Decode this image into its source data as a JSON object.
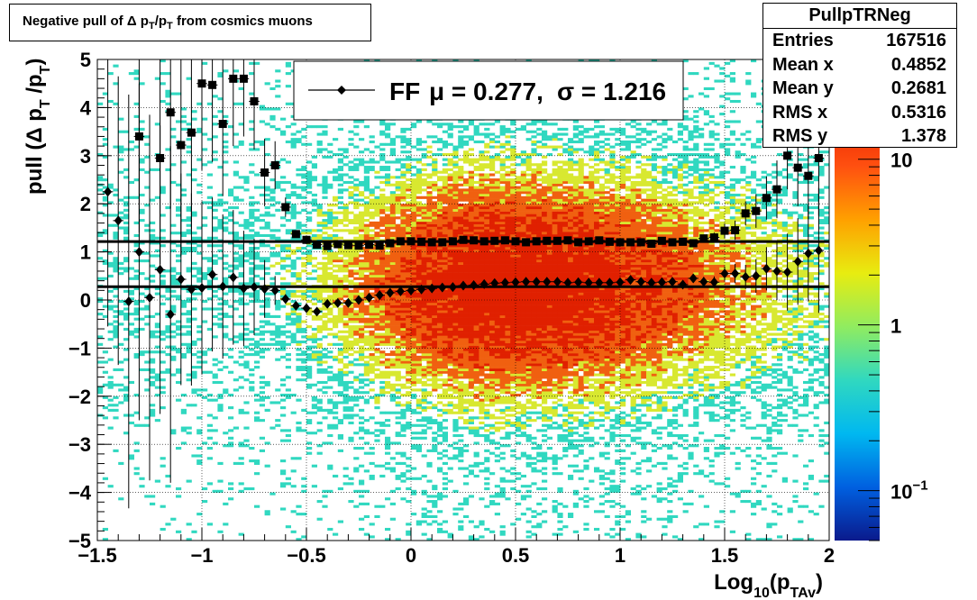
{
  "chart_data": {
    "type": "scatter",
    "title": "Negative pull of Δ p_T/p_T from cosmics muons",
    "title_parts": [
      "Negative pull of Δ p",
      "T",
      "/p",
      "T",
      " from cosmics muons"
    ],
    "xlabel": "Log10(pTAv)",
    "xlabel_parts": [
      "Log",
      "10",
      "(p",
      "TAv",
      ")"
    ],
    "ylabel": "pull (Δ p_T /p_T)",
    "ylabel_parts": [
      "pull (Δ p",
      "T",
      " /p",
      "T",
      ")"
    ],
    "xlim": [
      -1.5,
      2.0
    ],
    "ylim": [
      -5,
      5
    ],
    "grid": true,
    "xticks": [
      -1.5,
      -1,
      -0.5,
      0,
      0.5,
      1,
      1.5,
      2
    ],
    "xtick_labels": [
      "−1.5",
      "−1",
      "−0.5",
      "0",
      "0.5",
      "1",
      "1.5",
      "2"
    ],
    "yticks": [
      -5,
      -4,
      -3,
      -2,
      -1,
      0,
      1,
      2,
      3,
      4,
      5
    ],
    "ytick_labels": [
      "−5",
      "−4",
      "−3",
      "−2",
      "−1",
      "0",
      "1",
      "2",
      "3",
      "4",
      "5"
    ],
    "colorbar": {
      "scale": "log",
      "range": [
        0.05,
        40
      ],
      "labels": [
        {
          "value": 0.1,
          "base": "10",
          "exp": "−1"
        },
        {
          "value": 1,
          "base": "1",
          "exp": ""
        },
        {
          "value": 10,
          "base": "10",
          "exp": ""
        }
      ],
      "colors": [
        "#0a1a8c",
        "#0060e0",
        "#00b8f0",
        "#30d8c0",
        "#90ec60",
        "#e8ec10",
        "#ffa000",
        "#ff5010",
        "#e82000",
        "#c01800"
      ]
    },
    "density_colors": {
      "low": "#30d8c0",
      "mid": "#d8e830",
      "high": "#f06010",
      "peak": "#e02000"
    },
    "fit": {
      "label": "FF",
      "mu_text": "μ =  0.277,",
      "sigma_text": "σ =   1.216",
      "mean": 0.277,
      "sigma": 1.216
    },
    "stats": {
      "name": "PullpTRNeg",
      "rows": [
        {
          "label": "Entries",
          "value": "167516"
        },
        {
          "label": "Mean x",
          "value": "0.4852"
        },
        {
          "label": "Mean y",
          "value": "0.2681"
        },
        {
          "label": "RMS x",
          "value": "0.5316"
        },
        {
          "label": "RMS y",
          "value": "1.378"
        }
      ]
    },
    "series": [
      {
        "marker": "diamond",
        "x": [
          -1.45,
          -1.4,
          -1.35,
          -1.3,
          -1.25,
          -1.2,
          -1.15,
          -1.1,
          -1.05,
          -1.0,
          -0.95,
          -0.9,
          -0.85,
          -0.8,
          -0.75,
          -0.7,
          -0.65,
          -0.6,
          -0.55,
          -0.5,
          -0.45,
          -0.4,
          -0.35,
          -0.3,
          -0.25,
          -0.2,
          -0.15,
          -0.1,
          -0.05,
          0.0,
          0.05,
          0.1,
          0.15,
          0.2,
          0.25,
          0.3,
          0.35,
          0.4,
          0.45,
          0.5,
          0.55,
          0.6,
          0.65,
          0.7,
          0.75,
          0.8,
          0.85,
          0.9,
          0.95,
          1.0,
          1.05,
          1.1,
          1.15,
          1.2,
          1.25,
          1.3,
          1.35,
          1.4,
          1.45,
          1.5,
          1.55,
          1.6,
          1.65,
          1.7,
          1.75,
          1.8,
          1.85,
          1.9,
          1.95
        ],
        "y": [
          2.25,
          1.65,
          -0.03,
          1.0,
          0.05,
          0.63,
          -0.3,
          0.43,
          0.22,
          0.25,
          0.53,
          0.28,
          0.47,
          0.24,
          0.27,
          0.23,
          0.2,
          0.02,
          -0.12,
          -0.17,
          -0.24,
          -0.08,
          -0.06,
          -0.06,
          0.0,
          0.05,
          0.1,
          0.15,
          0.18,
          0.2,
          0.22,
          0.24,
          0.26,
          0.27,
          0.3,
          0.31,
          0.33,
          0.35,
          0.36,
          0.37,
          0.38,
          0.38,
          0.38,
          0.38,
          0.36,
          0.37,
          0.36,
          0.36,
          0.36,
          0.37,
          0.42,
          0.38,
          0.36,
          0.37,
          0.38,
          0.32,
          0.45,
          0.38,
          0.37,
          0.55,
          0.55,
          0.48,
          0.5,
          0.65,
          0.6,
          0.58,
          0.8,
          0.97,
          1.03
        ],
        "err": [
          2.8,
          3.0,
          4.3,
          3.5,
          3.8,
          3.0,
          3.5,
          2.2,
          2.0,
          1.8,
          1.6,
          1.5,
          1.4,
          1.2,
          1.0,
          0.6,
          0.3,
          0.1,
          0.06,
          0.05,
          0.04,
          0.03,
          0.03,
          0.02,
          0.02,
          0.02,
          0.02,
          0.02,
          0.02,
          0.02,
          0.02,
          0.02,
          0.02,
          0.02,
          0.02,
          0.02,
          0.02,
          0.02,
          0.02,
          0.02,
          0.02,
          0.02,
          0.02,
          0.02,
          0.02,
          0.02,
          0.02,
          0.02,
          0.02,
          0.02,
          0.03,
          0.03,
          0.03,
          0.03,
          0.04,
          0.05,
          0.08,
          0.1,
          0.12,
          0.15,
          0.2,
          0.25,
          0.35,
          0.45,
          0.6,
          0.8,
          0.9,
          1.0,
          1.3
        ]
      },
      {
        "marker": "square",
        "x": [
          -1.3,
          -1.2,
          -1.15,
          -1.1,
          -1.05,
          -1.0,
          -0.95,
          -0.9,
          -0.85,
          -0.8,
          -0.75,
          -0.7,
          -0.65,
          -0.6,
          -0.55,
          -0.5,
          -0.45,
          -0.4,
          -0.35,
          -0.3,
          -0.25,
          -0.2,
          -0.15,
          -0.1,
          -0.05,
          0.0,
          0.05,
          0.1,
          0.15,
          0.2,
          0.25,
          0.3,
          0.35,
          0.4,
          0.45,
          0.5,
          0.55,
          0.6,
          0.65,
          0.7,
          0.75,
          0.8,
          0.85,
          0.9,
          0.95,
          1.0,
          1.05,
          1.1,
          1.15,
          1.2,
          1.25,
          1.3,
          1.35,
          1.4,
          1.45,
          1.5,
          1.55,
          1.6,
          1.65,
          1.7,
          1.75,
          1.8,
          1.85,
          1.9,
          1.95
        ],
        "y": [
          3.4,
          2.95,
          3.9,
          3.22,
          3.48,
          4.5,
          4.47,
          3.66,
          4.6,
          4.6,
          4.13,
          2.65,
          2.8,
          1.93,
          1.37,
          1.25,
          1.15,
          1.12,
          1.16,
          1.14,
          1.13,
          1.15,
          1.13,
          1.18,
          1.22,
          1.22,
          1.21,
          1.2,
          1.2,
          1.22,
          1.25,
          1.24,
          1.22,
          1.23,
          1.24,
          1.22,
          1.2,
          1.22,
          1.23,
          1.23,
          1.24,
          1.2,
          1.22,
          1.24,
          1.21,
          1.2,
          1.2,
          1.2,
          1.17,
          1.23,
          1.2,
          1.21,
          1.18,
          1.28,
          1.3,
          1.44,
          1.45,
          1.8,
          1.85,
          2.12,
          2.3,
          3.0,
          2.75,
          2.58,
          2.95
        ],
        "err": [
          2.0,
          2.2,
          2.0,
          2.3,
          2.0,
          1.8,
          1.6,
          1.5,
          1.4,
          1.2,
          1.0,
          0.7,
          0.5,
          0.2,
          0.06,
          0.05,
          0.04,
          0.03,
          0.03,
          0.03,
          0.02,
          0.02,
          0.02,
          0.02,
          0.02,
          0.02,
          0.02,
          0.02,
          0.02,
          0.02,
          0.02,
          0.02,
          0.02,
          0.02,
          0.02,
          0.02,
          0.02,
          0.02,
          0.02,
          0.02,
          0.02,
          0.02,
          0.02,
          0.02,
          0.02,
          0.02,
          0.02,
          0.03,
          0.03,
          0.03,
          0.03,
          0.05,
          0.06,
          0.08,
          0.1,
          0.15,
          0.2,
          0.25,
          0.35,
          0.45,
          0.6,
          0.7,
          0.8,
          0.9,
          1.2
        ]
      }
    ],
    "hlines": [
      {
        "y": 0.277
      },
      {
        "y": 1.216
      }
    ]
  }
}
